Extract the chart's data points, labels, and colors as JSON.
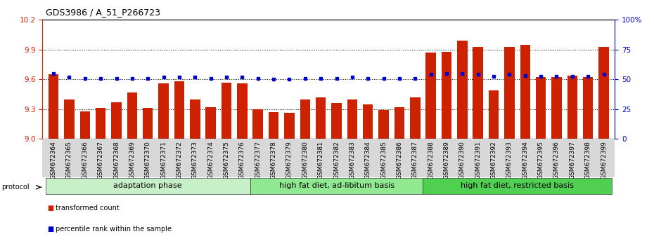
{
  "title": "GDS3986 / A_51_P266723",
  "samples": [
    "GSM672364",
    "GSM672365",
    "GSM672366",
    "GSM672367",
    "GSM672368",
    "GSM672369",
    "GSM672370",
    "GSM672371",
    "GSM672372",
    "GSM672373",
    "GSM672374",
    "GSM672375",
    "GSM672376",
    "GSM672377",
    "GSM672378",
    "GSM672379",
    "GSM672380",
    "GSM672381",
    "GSM672382",
    "GSM672383",
    "GSM672384",
    "GSM672385",
    "GSM672386",
    "GSM672387",
    "GSM672388",
    "GSM672389",
    "GSM672390",
    "GSM672391",
    "GSM672392",
    "GSM672393",
    "GSM672394",
    "GSM672395",
    "GSM672396",
    "GSM672397",
    "GSM672398",
    "GSM672399"
  ],
  "red_values": [
    9.65,
    9.4,
    9.28,
    9.31,
    9.37,
    9.47,
    9.31,
    9.56,
    9.58,
    9.4,
    9.32,
    9.57,
    9.56,
    9.3,
    9.27,
    9.26,
    9.4,
    9.42,
    9.36,
    9.4,
    9.35,
    9.29,
    9.32,
    9.42,
    9.87,
    9.88,
    9.99,
    9.93,
    9.49,
    9.93,
    9.95,
    9.62,
    9.62,
    9.64,
    9.62,
    9.93
  ],
  "blue_values": [
    9.66,
    9.62,
    9.61,
    9.61,
    9.61,
    9.61,
    9.61,
    9.62,
    9.62,
    9.62,
    9.61,
    9.62,
    9.62,
    9.61,
    9.6,
    9.6,
    9.61,
    9.61,
    9.61,
    9.62,
    9.61,
    9.61,
    9.61,
    9.61,
    9.65,
    9.66,
    9.66,
    9.65,
    9.63,
    9.65,
    9.64,
    9.63,
    9.63,
    9.63,
    9.63,
    9.65
  ],
  "groups": [
    {
      "label": "adaptation phase",
      "start": 0,
      "end": 13,
      "color": "#c8f0c8"
    },
    {
      "label": "high fat diet, ad-libitum basis",
      "start": 13,
      "end": 24,
      "color": "#90e890"
    },
    {
      "label": "high fat diet, restricted basis",
      "start": 24,
      "end": 36,
      "color": "#50d050"
    }
  ],
  "ylim_left": [
    9.0,
    10.2
  ],
  "ylim_right": [
    0,
    100
  ],
  "yticks_left": [
    9.0,
    9.3,
    9.6,
    9.9,
    10.2
  ],
  "yticks_right": [
    0,
    25,
    50,
    75,
    100
  ],
  "bar_color": "#cc2200",
  "dot_color": "#0000cc",
  "bg_color": "#ffffff",
  "title_fontsize": 9,
  "tick_fontsize": 6.5,
  "label_fontsize": 8,
  "protocol_label": "protocol",
  "legend_items": [
    {
      "label": "transformed count",
      "color": "#cc2200"
    },
    {
      "label": "percentile rank within the sample",
      "color": "#0000cc"
    }
  ]
}
